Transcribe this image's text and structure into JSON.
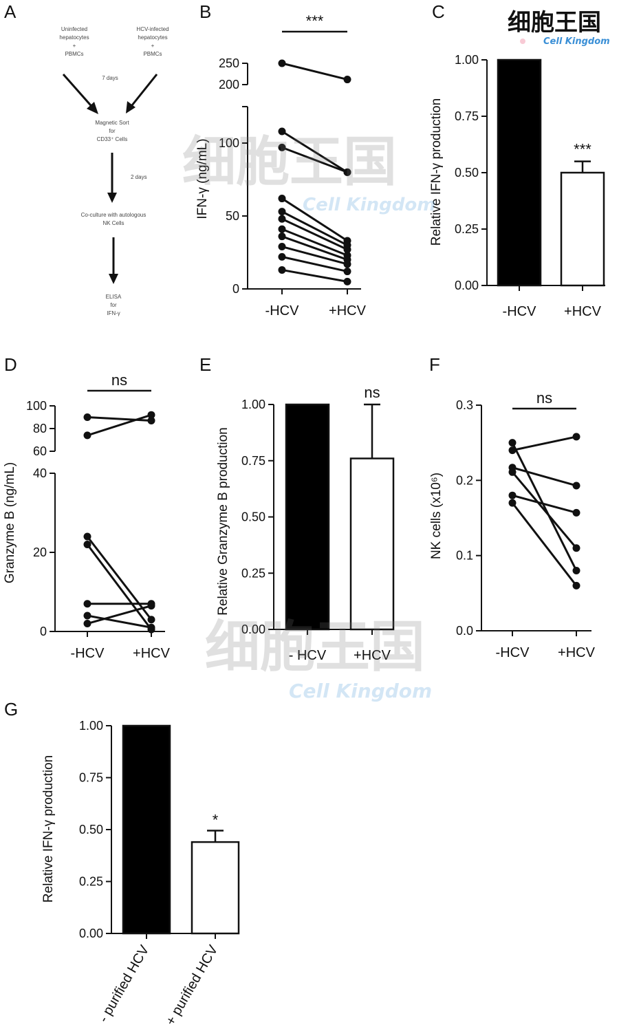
{
  "panel_letters": [
    "A",
    "B",
    "C",
    "D",
    "E",
    "F",
    "G"
  ],
  "panelA": {
    "box_left": [
      "Uninfected",
      "hepatocytes",
      "+",
      "PBMCs"
    ],
    "box_right": [
      "HCV-infected",
      "hepatocytes",
      "+",
      "PBMCs"
    ],
    "step1": "7 days",
    "sort": [
      "Magnetic Sort",
      "for",
      "CD33⁺ Cells"
    ],
    "step2": "2 days",
    "coculture": [
      "Co-culture with autologous",
      "NK Cells"
    ],
    "readout": [
      "ELISA",
      "for",
      "IFN-γ"
    ]
  },
  "watermark": {
    "text_cn": "细胞王国",
    "text_en": "Cell Kingdom"
  },
  "colors": {
    "filled_bar": "#000000",
    "open_bar": "#ffffff",
    "ink": "#111111"
  },
  "chart_data": [
    {
      "panel": "B",
      "type": "line",
      "ylabel": "IFN-γ (ng/mL)",
      "categories": [
        "-HCV",
        "+HCV"
      ],
      "y_ticks_lower": [
        "0",
        "50",
        "100"
      ],
      "y_ticks_upper": [
        "200",
        "250"
      ],
      "ylim_lower": [
        0,
        125
      ],
      "ylim_upper": [
        200,
        250
      ],
      "significance": "***",
      "pairs": [
        [
          250,
          212
        ],
        [
          108,
          80
        ],
        [
          97,
          80
        ],
        [
          62,
          33
        ],
        [
          53,
          30
        ],
        [
          48,
          27
        ],
        [
          41,
          23
        ],
        [
          36,
          20
        ],
        [
          29,
          17
        ],
        [
          22,
          12
        ],
        [
          13,
          5
        ]
      ]
    },
    {
      "panel": "C",
      "type": "bar",
      "ylabel": "Relative IFN-γ production",
      "categories": [
        "-HCV",
        "+HCV"
      ],
      "values": [
        1.0,
        0.5
      ],
      "errors": [
        0,
        0.05
      ],
      "ylim": [
        0,
        1
      ],
      "y_ticks": [
        "0.00",
        "0.25",
        "0.50",
        "0.75",
        "1.00"
      ],
      "significance": [
        "",
        "***"
      ]
    },
    {
      "panel": "D",
      "type": "line",
      "ylabel": "Granzyme B (ng/mL)",
      "categories": [
        "-HCV",
        "+HCV"
      ],
      "y_ticks_lower": [
        "0",
        "20",
        "40"
      ],
      "y_ticks_upper": [
        "60",
        "80",
        "100"
      ],
      "ylim_lower": [
        0,
        40
      ],
      "ylim_upper": [
        60,
        100
      ],
      "significance": "ns",
      "pairs": [
        [
          90,
          87
        ],
        [
          74,
          92
        ],
        [
          24,
          3
        ],
        [
          22,
          0.5
        ],
        [
          7,
          7
        ],
        [
          4,
          1
        ],
        [
          2,
          6.5
        ]
      ]
    },
    {
      "panel": "E",
      "type": "bar",
      "ylabel": "Relative Granzyme B production",
      "categories": [
        "- HCV",
        "+HCV"
      ],
      "values": [
        1.0,
        0.76
      ],
      "errors": [
        0,
        0.24
      ],
      "ylim": [
        0,
        1
      ],
      "y_ticks": [
        "0.00",
        "0.25",
        "0.50",
        "0.75",
        "1.00"
      ],
      "significance": [
        "",
        "ns"
      ]
    },
    {
      "panel": "F",
      "type": "line",
      "ylabel": "NK cells (x10⁶)",
      "categories": [
        "-HCV",
        "+HCV"
      ],
      "ylim": [
        0,
        0.3
      ],
      "y_ticks": [
        "0.0",
        "0.1",
        "0.2",
        "0.3"
      ],
      "significance": "ns",
      "pairs": [
        [
          0.24,
          0.258
        ],
        [
          0.25,
          0.08
        ],
        [
          0.217,
          0.193
        ],
        [
          0.211,
          0.11
        ],
        [
          0.18,
          0.157
        ],
        [
          0.17,
          0.06
        ]
      ]
    },
    {
      "panel": "G",
      "type": "bar",
      "ylabel": "Relative IFN-γ production",
      "categories": [
        "- purified HCV",
        "+ purified HCV"
      ],
      "values": [
        1.0,
        0.44
      ],
      "errors": [
        0,
        0.055
      ],
      "ylim": [
        0,
        1
      ],
      "y_ticks": [
        "0.00",
        "0.25",
        "0.50",
        "0.75",
        "1.00"
      ],
      "significance": [
        "",
        "*"
      ]
    }
  ]
}
